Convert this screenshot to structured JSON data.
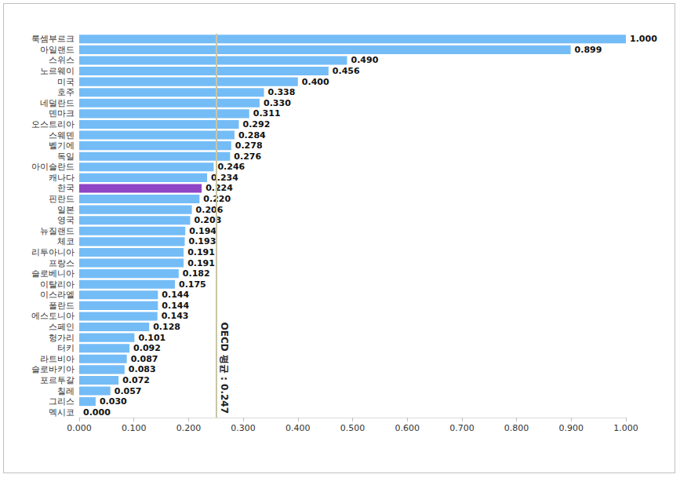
{
  "chart_data": {
    "type": "bar",
    "orientation": "horizontal",
    "categories": [
      "룩셈부르크",
      "아일랜드",
      "스위스",
      "노르웨이",
      "미국",
      "호주",
      "네덜란드",
      "덴마크",
      "오스트리아",
      "스웨덴",
      "벨기에",
      "독일",
      "아이슬란드",
      "캐나다",
      "한국",
      "핀란드",
      "일본",
      "영국",
      "뉴질랜드",
      "체코",
      "리투아니아",
      "프랑스",
      "슬로베니아",
      "이탈리아",
      "이스라엘",
      "폴란드",
      "에스토니아",
      "스페인",
      "헝가리",
      "터키",
      "라트비아",
      "슬로바키아",
      "포르투갈",
      "칠레",
      "그리스",
      "멕시코"
    ],
    "values": [
      1.0,
      0.899,
      0.49,
      0.456,
      0.4,
      0.338,
      0.33,
      0.311,
      0.292,
      0.284,
      0.278,
      0.276,
      0.246,
      0.234,
      0.224,
      0.22,
      0.206,
      0.203,
      0.194,
      0.193,
      0.191,
      0.191,
      0.182,
      0.175,
      0.144,
      0.144,
      0.143,
      0.128,
      0.101,
      0.092,
      0.087,
      0.083,
      0.072,
      0.057,
      0.03,
      0.0
    ],
    "value_labels": [
      "1.000",
      "0.899",
      "0.490",
      "0.456",
      "0.400",
      "0.338",
      "0.330",
      "0.311",
      "0.292",
      "0.284",
      "0.278",
      "0.276",
      "0.246",
      "0.234",
      "0.224",
      "0.220",
      "0.206",
      "0.203",
      "0.194",
      "0.193",
      "0.191",
      "0.191",
      "0.182",
      "0.175",
      "0.144",
      "0.144",
      "0.143",
      "0.128",
      "0.101",
      "0.092",
      "0.087",
      "0.083",
      "0.072",
      "0.057",
      "0.030",
      "0.000"
    ],
    "colors": [
      "#74bcf6",
      "#74bcf6",
      "#74bcf6",
      "#74bcf6",
      "#74bcf6",
      "#74bcf6",
      "#74bcf6",
      "#74bcf6",
      "#74bcf6",
      "#74bcf6",
      "#74bcf6",
      "#74bcf6",
      "#74bcf6",
      "#74bcf6",
      "#8f45c6",
      "#74bcf6",
      "#74bcf6",
      "#74bcf6",
      "#74bcf6",
      "#74bcf6",
      "#74bcf6",
      "#74bcf6",
      "#74bcf6",
      "#74bcf6",
      "#74bcf6",
      "#74bcf6",
      "#74bcf6",
      "#74bcf6",
      "#74bcf6",
      "#74bcf6",
      "#74bcf6",
      "#74bcf6",
      "#74bcf6",
      "#74bcf6",
      "#74bcf6",
      "#74bcf6"
    ],
    "data_labels": true,
    "xlim": [
      0,
      1
    ],
    "xticks": [
      {
        "value": 0,
        "label": "0.000"
      },
      {
        "value": 0.1,
        "label": "0.100"
      },
      {
        "value": 0.2,
        "label": "0.200"
      },
      {
        "value": 0.3,
        "label": "0.300"
      },
      {
        "value": 0.4,
        "label": "0.400"
      },
      {
        "value": 0.5,
        "label": "0.500"
      },
      {
        "value": 0.6,
        "label": "0.600"
      },
      {
        "value": 0.7,
        "label": "0.700"
      },
      {
        "value": 0.8,
        "label": "0.800"
      },
      {
        "value": 0.9,
        "label": "0.900"
      },
      {
        "value": 1,
        "label": "1.000"
      }
    ],
    "grid": false,
    "annotations": [
      {
        "text": "OECD 평균 : 0.247",
        "x": 0.247
      }
    ]
  }
}
